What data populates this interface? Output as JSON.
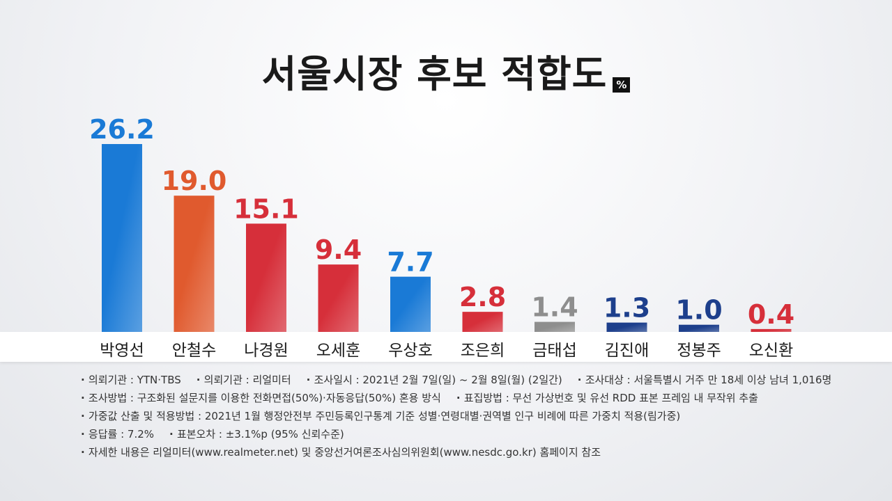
{
  "header": {
    "title": "서울시장 후보 적합도",
    "unit": "%"
  },
  "chart_data": {
    "type": "bar",
    "title": "서울시장 후보 적합도",
    "unit": "%",
    "categories": [
      "박영선",
      "안철수",
      "나경원",
      "오세훈",
      "우상호",
      "조은희",
      "금태섭",
      "김진애",
      "정봉주",
      "오신환"
    ],
    "values": [
      26.2,
      19.0,
      15.1,
      9.4,
      7.7,
      2.8,
      1.4,
      1.3,
      1.0,
      0.4
    ],
    "value_labels": [
      "26.2",
      "19.0",
      "15.1",
      "9.4",
      "7.7",
      "2.8",
      "1.4",
      "1.3",
      "1.0",
      "0.4"
    ],
    "colors": [
      "#1a7ad6",
      "#e05a2e",
      "#d62f3a",
      "#d62f3a",
      "#1a7ad6",
      "#d62f3a",
      "#8e8e8e",
      "#1d3f8c",
      "#1d3f8c",
      "#d62f3a"
    ],
    "ylim": [
      0,
      26.2
    ],
    "grid": false,
    "legend": "none"
  },
  "notes": [
    [
      "의뢰기관 : YTN·TBS",
      "의뢰기관 : 리얼미터",
      "조사일시 :  2021년 2월 7일(일) ~ 2월 8일(월) (2일간)",
      "조사대상 : 서울특별시 거주 만 18세 이상 남녀 1,016명"
    ],
    [
      "조사방법 : 구조화된 설문지를 이용한 전화면접(50%)·자동응답(50%) 혼용 방식",
      "표집방법 : 무선 가상번호 및 유선 RDD 표본 프레임 내 무작위 추출"
    ],
    [
      "가중값 산출 및 적용방법 : 2021년 1월 행정안전부 주민등록인구통계 기준 성별·연령대별·권역별 인구 비례에 따른 가중치 적용(림가중)"
    ],
    [
      "응답률 : 7.2%",
      "표본오차 : ±3.1%p (95% 신뢰수준)"
    ],
    [
      "자세한 내용은 리얼미터(www.realmeter.net) 및 중앙선거여론조사심의위원회(www.nesdc.go.kr) 홈페이지 참조"
    ]
  ]
}
